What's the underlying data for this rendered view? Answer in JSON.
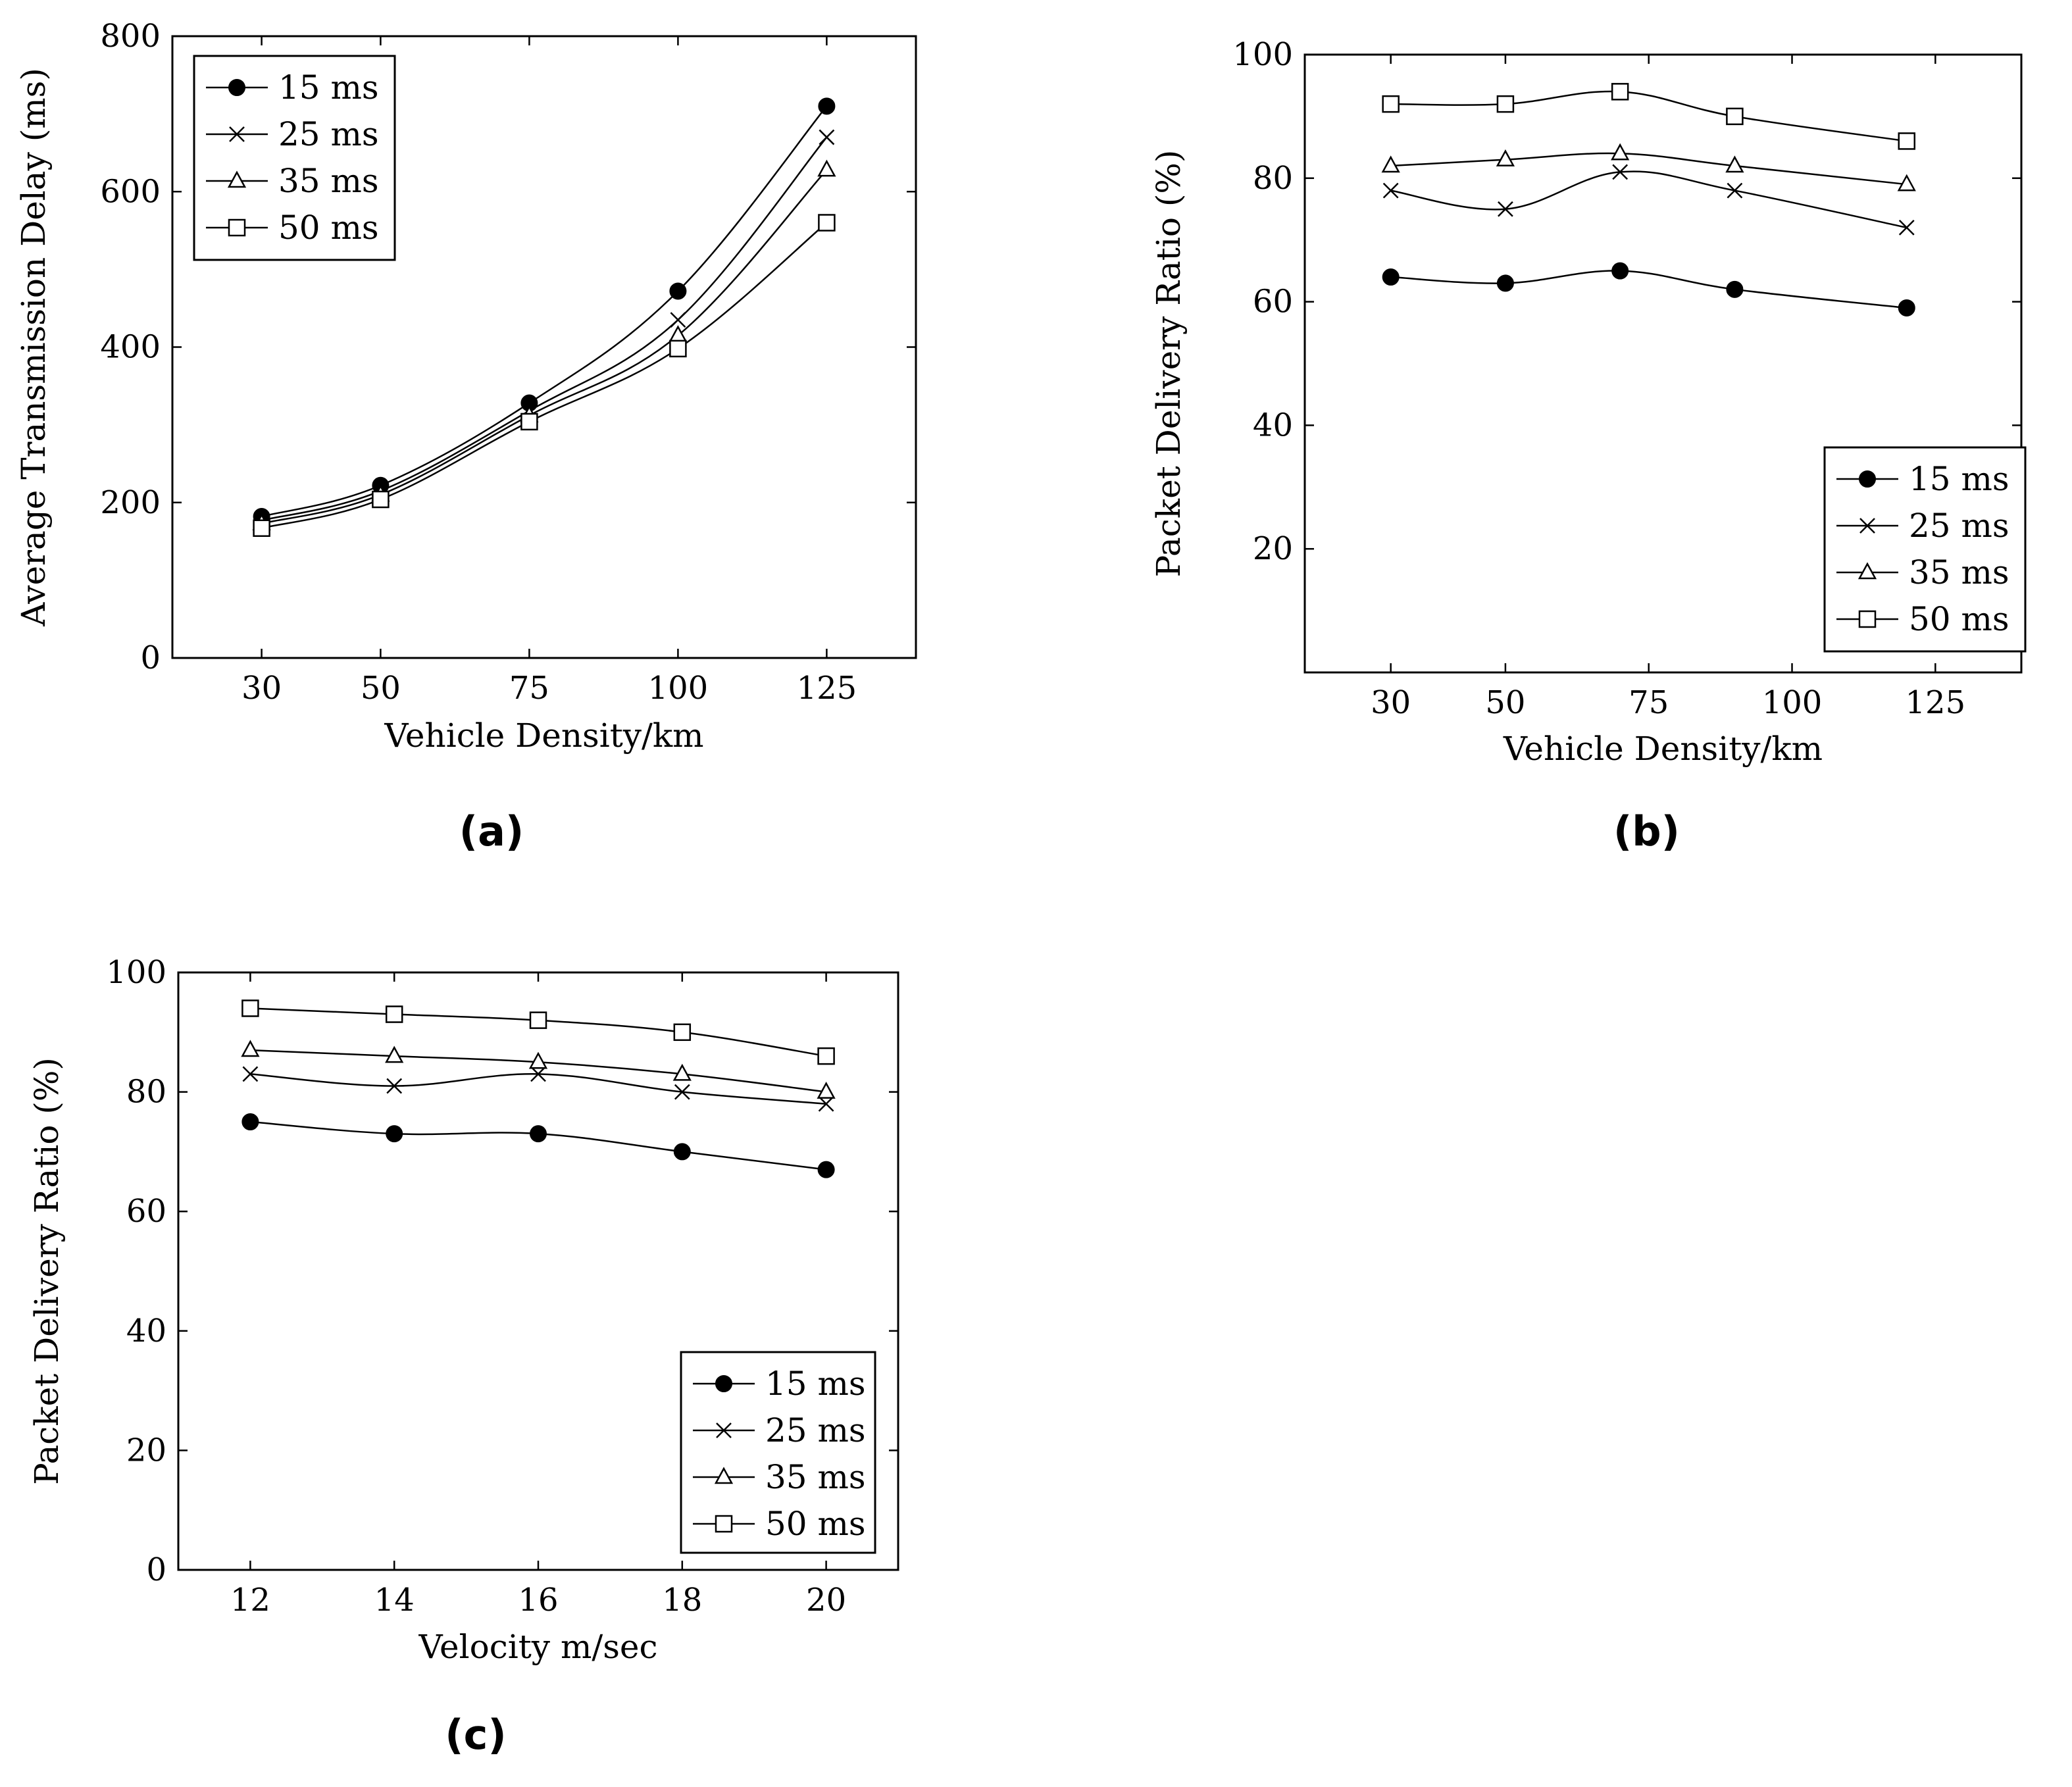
{
  "chart_data": [
    {
      "type": "line",
      "panel_label": "(a)",
      "title": "",
      "xlabel": "Vehicle Density/km",
      "ylabel": "Average Transmission Delay (ms)",
      "xlim": [
        15,
        140
      ],
      "ylim": [
        0,
        800
      ],
      "xticks": [
        30,
        50,
        75,
        100,
        125
      ],
      "xtick_labels": [
        "30",
        "50",
        "75",
        "100",
        "125"
      ],
      "yticks": [
        0,
        200,
        400,
        600,
        800
      ],
      "ytick_labels": [
        "0",
        "200",
        "400",
        "600",
        "800"
      ],
      "legend_position": "top-left",
      "grid": false,
      "series": [
        {
          "name": "15 ms",
          "marker": "filled-circle",
          "x": [
            30,
            50,
            75,
            100,
            125
          ],
          "values": [
            182,
            222,
            328,
            472,
            710
          ]
        },
        {
          "name": "25 ms",
          "marker": "cross",
          "x": [
            30,
            50,
            75,
            100,
            125
          ],
          "values": [
            177,
            215,
            318,
            435,
            670
          ]
        },
        {
          "name": "35 ms",
          "marker": "triangle",
          "x": [
            30,
            50,
            75,
            100,
            125
          ],
          "values": [
            173,
            210,
            312,
            415,
            628
          ]
        },
        {
          "name": "50 ms",
          "marker": "square",
          "x": [
            30,
            50,
            75,
            100,
            125
          ],
          "values": [
            167,
            204,
            304,
            398,
            560
          ]
        }
      ]
    },
    {
      "type": "line",
      "panel_label": "(b)",
      "title": "",
      "xlabel": "Vehicle Density/km",
      "ylabel": "Packet Delivery Ratio (%)",
      "xlim": [
        15,
        140
      ],
      "ylim": [
        0,
        100
      ],
      "xticks": [
        30,
        50,
        75,
        100,
        125
      ],
      "xtick_labels": [
        "30",
        "50",
        "75",
        "100",
        "125"
      ],
      "yticks": [
        20,
        40,
        60,
        80,
        100
      ],
      "ytick_labels": [
        "20",
        "40",
        "60",
        "80",
        "100"
      ],
      "legend_position": "bottom-right",
      "grid": false,
      "series": [
        {
          "name": "15 ms",
          "marker": "filled-circle",
          "x": [
            30,
            50,
            70,
            90,
            120
          ],
          "values": [
            64,
            63,
            65,
            62,
            59
          ]
        },
        {
          "name": "25 ms",
          "marker": "cross",
          "x": [
            30,
            50,
            70,
            90,
            120
          ],
          "values": [
            78,
            75,
            81,
            78,
            72
          ]
        },
        {
          "name": "35 ms",
          "marker": "triangle",
          "x": [
            30,
            50,
            70,
            90,
            120
          ],
          "values": [
            82,
            83,
            84,
            82,
            79
          ]
        },
        {
          "name": "50 ms",
          "marker": "square",
          "x": [
            30,
            50,
            70,
            90,
            120
          ],
          "values": [
            92,
            92,
            94,
            90,
            86
          ]
        }
      ]
    },
    {
      "type": "line",
      "panel_label": "(c)",
      "title": "",
      "xlabel": "Velocity m/sec",
      "ylabel": "Packet Delivery Ratio (%)",
      "xlim": [
        11,
        21
      ],
      "ylim": [
        0,
        100
      ],
      "xticks": [
        12,
        14,
        16,
        18,
        20
      ],
      "xtick_labels": [
        "12",
        "14",
        "16",
        "18",
        "20"
      ],
      "yticks": [
        0,
        20,
        40,
        60,
        80,
        100
      ],
      "ytick_labels": [
        "0",
        "20",
        "40",
        "60",
        "80",
        "100"
      ],
      "legend_position": "bottom-right",
      "grid": false,
      "series": [
        {
          "name": "15 ms",
          "marker": "filled-circle",
          "x": [
            12,
            14,
            16,
            18,
            20
          ],
          "values": [
            75,
            73,
            73,
            70,
            67
          ]
        },
        {
          "name": "25 ms",
          "marker": "cross",
          "x": [
            12,
            14,
            16,
            18,
            20
          ],
          "values": [
            83,
            81,
            83,
            80,
            78
          ]
        },
        {
          "name": "35 ms",
          "marker": "triangle",
          "x": [
            12,
            14,
            16,
            18,
            20
          ],
          "values": [
            87,
            86,
            85,
            83,
            80
          ]
        },
        {
          "name": "50 ms",
          "marker": "square",
          "x": [
            12,
            14,
            16,
            18,
            20
          ],
          "values": [
            94,
            93,
            92,
            90,
            86
          ]
        }
      ]
    }
  ]
}
